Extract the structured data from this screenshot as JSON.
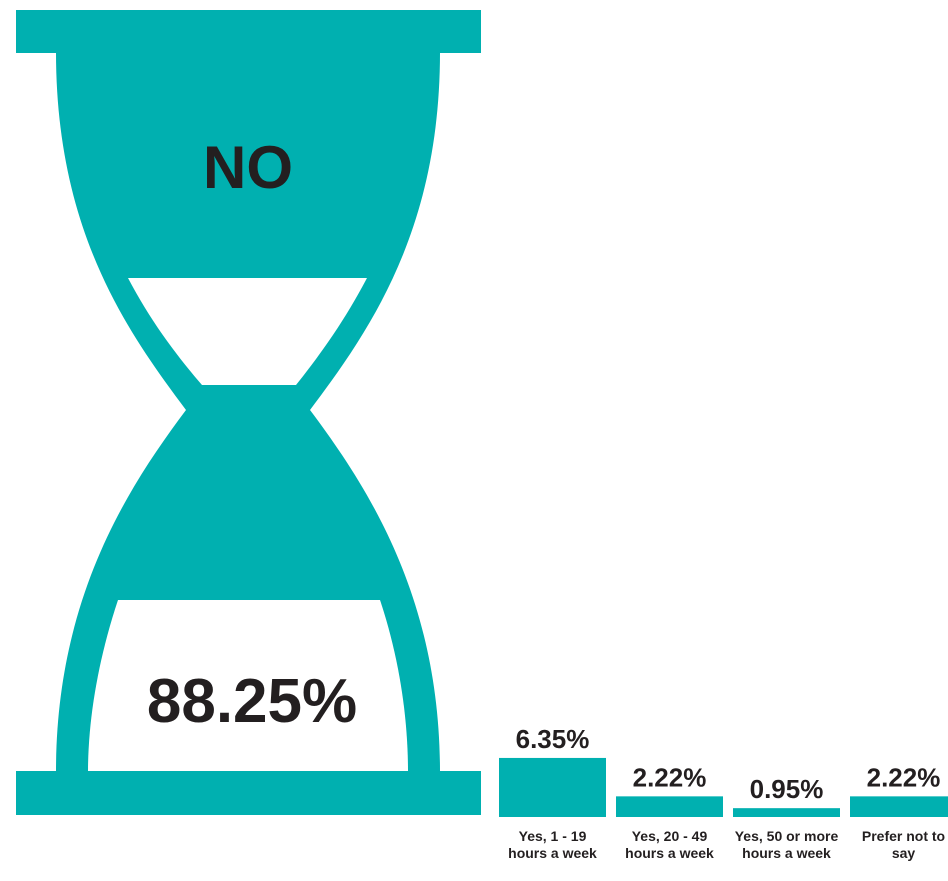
{
  "colors": {
    "teal": "#00b0b0",
    "text": "#231f20",
    "background": "#ffffff"
  },
  "chart_data": {
    "type": "bar",
    "unit": "%",
    "featured": {
      "category": "NO",
      "value": 88.25,
      "value_label": "88.25%",
      "shape": "hourglass"
    },
    "categories": [
      "Yes, 1 - 19 hours a week",
      "Yes, 20 - 49 hours a week",
      "Yes, 50 or more hours a week",
      "Prefer not to say"
    ],
    "values": [
      6.35,
      2.22,
      0.95,
      2.22
    ],
    "value_labels": [
      "6.35%",
      "2.22%",
      "0.95%",
      "2.22%"
    ],
    "grid": false,
    "legend": "none"
  }
}
